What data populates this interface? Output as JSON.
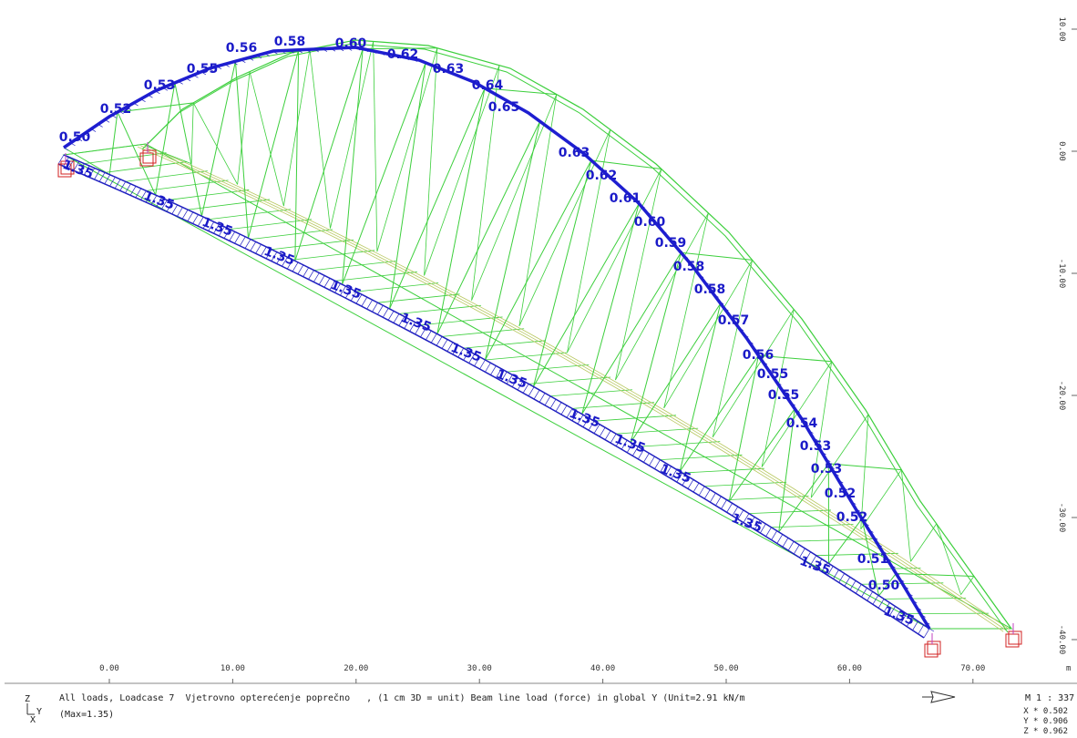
{
  "viewport": {
    "x_axis": {
      "ticks": [
        "0.00",
        "10.00",
        "20.00",
        "30.00",
        "40.00",
        "50.00",
        "60.00",
        "70.00"
      ],
      "unit": "m"
    },
    "z_axis": {
      "ticks": [
        "10.00",
        "0.00",
        "-10.00",
        "-20.00",
        "-30.00",
        "-40.00"
      ]
    },
    "arch_labels": [
      "0.50",
      "0.52",
      "0.53",
      "0.55",
      "0.56",
      "0.58",
      "0.60",
      "0.62",
      "0.63",
      "0.64",
      "0.65",
      "0.63",
      "0.62",
      "0.61",
      "0.60",
      "0.59",
      "0.58",
      "0.58",
      "0.57",
      "0.56",
      "0.55",
      "0.55",
      "0.54",
      "0.53",
      "0.53",
      "0.52",
      "0.52",
      "0.51",
      "0.50"
    ],
    "deck_labels": [
      "1.35",
      "1.35",
      "1.35",
      "1.35",
      "1.35",
      "1.35",
      "1.35",
      "1.35",
      "1.35",
      "1.35",
      "1.35",
      "1.35",
      "1.35",
      "1.35"
    ]
  },
  "status": {
    "axis_icon": [
      "Z",
      "Y",
      "X"
    ],
    "line1": "All loads, Loadcase 7  Vjetrovno opterećenje poprečno   , (1 cm 3D = unit) Beam line load (force) in global Y (Unit=2.91 kN/m",
    "line2": "(Max=1.35)",
    "scale": "M 1 : 337",
    "factors": [
      "X * 0.502",
      "Y * 0.906",
      "Z * 0.962"
    ]
  }
}
